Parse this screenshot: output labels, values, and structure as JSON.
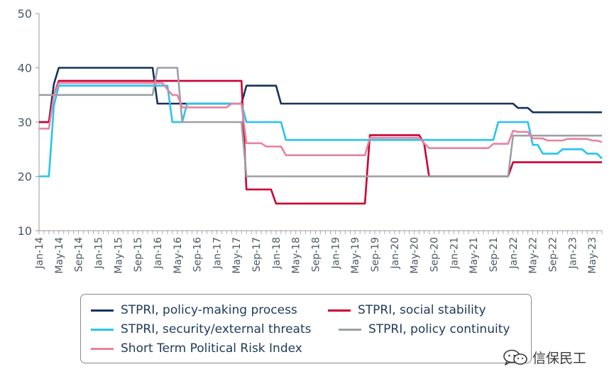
{
  "chart_data": {
    "type": "line",
    "title": "",
    "xlabel": "",
    "ylabel": "",
    "ylim": [
      10,
      50
    ],
    "yticks": [
      10,
      20,
      30,
      40,
      50
    ],
    "x_start": "Jan-14",
    "x_end": "Jul-23",
    "grid": false,
    "legend_position": "bottom",
    "xtick_labels": [
      "Jan-14",
      "May-14",
      "Sep-14",
      "Jan-15",
      "May-15",
      "Sep-15",
      "Jan-16",
      "May-16",
      "Sep-16",
      "Jan-17",
      "May-17",
      "Sep-17",
      "Jan-18",
      "May-18",
      "Sep-18",
      "Jan-19",
      "May-19",
      "Sep-19",
      "Jan-20",
      "May-20",
      "Sep-20",
      "Jan-21",
      "May-21",
      "Sep-21",
      "Jan-22",
      "May-22",
      "Sep-22",
      "Jan-23",
      "May-23"
    ],
    "series": [
      {
        "name": "STPRI, policy-making process",
        "color": "#14335c",
        "points": [
          [
            "Jan-14",
            30
          ],
          [
            "Mar-14",
            30
          ],
          [
            "Apr-14",
            37
          ],
          [
            "May-14",
            40
          ],
          [
            "Dec-15",
            40
          ],
          [
            "Jan-16",
            33.4
          ],
          [
            "Jun-17",
            33.4
          ],
          [
            "Jul-17",
            36.7
          ],
          [
            "Jan-18",
            36.7
          ],
          [
            "Feb-18",
            33.4
          ],
          [
            "Jan-22",
            33.4
          ],
          [
            "Feb-22",
            32.6
          ],
          [
            "Apr-22",
            32.6
          ],
          [
            "May-22",
            31.8
          ],
          [
            "Jul-23",
            31.8
          ]
        ]
      },
      {
        "name": "STPRI, social stability",
        "color": "#cc0033",
        "points": [
          [
            "Jan-14",
            30
          ],
          [
            "Mar-14",
            30
          ],
          [
            "Apr-14",
            35
          ],
          [
            "May-14",
            37.6
          ],
          [
            "Jun-17",
            37.6
          ],
          [
            "Jul-17",
            17.6
          ],
          [
            "Dec-17",
            17.6
          ],
          [
            "Jan-18",
            15
          ],
          [
            "Jul-19",
            15
          ],
          [
            "Aug-19",
            27.6
          ],
          [
            "Jun-20",
            27.6
          ],
          [
            "Jul-20",
            26
          ],
          [
            "Aug-20",
            20
          ],
          [
            "Dec-21",
            20
          ],
          [
            "Jan-22",
            22.6
          ],
          [
            "Jul-23",
            22.6
          ]
        ]
      },
      {
        "name": "STPRI, security/external threats",
        "color": "#26c4ef",
        "points": [
          [
            "Jan-14",
            20
          ],
          [
            "Mar-14",
            20
          ],
          [
            "Apr-14",
            33
          ],
          [
            "May-14",
            36.7
          ],
          [
            "Jan-16",
            36.7
          ],
          [
            "Mar-16",
            36.7
          ],
          [
            "Apr-16",
            30
          ],
          [
            "Jun-16",
            30
          ],
          [
            "Jul-16",
            33.4
          ],
          [
            "May-17",
            33.4
          ],
          [
            "Jun-17",
            33.4
          ],
          [
            "Jul-17",
            30
          ],
          [
            "Feb-18",
            30
          ],
          [
            "Mar-18",
            26.7
          ],
          [
            "Sep-21",
            26.7
          ],
          [
            "Oct-21",
            30
          ],
          [
            "Apr-22",
            30
          ],
          [
            "May-22",
            25.8
          ],
          [
            "Jun-22",
            25.8
          ],
          [
            "Jul-22",
            24.2
          ],
          [
            "Oct-22",
            24.2
          ],
          [
            "Nov-22",
            25
          ],
          [
            "Mar-23",
            25
          ],
          [
            "Apr-23",
            24.2
          ],
          [
            "Jun-23",
            24.2
          ],
          [
            "Jul-23",
            23.3
          ]
        ]
      },
      {
        "name": "STPRI, policy continuity",
        "color": "#9aa0a6",
        "points": [
          [
            "Jan-14",
            35
          ],
          [
            "Dec-15",
            35
          ],
          [
            "Jan-16",
            40
          ],
          [
            "May-16",
            40
          ],
          [
            "Jun-16",
            30
          ],
          [
            "May-17",
            30
          ],
          [
            "Jun-17",
            30
          ],
          [
            "Jul-17",
            20
          ],
          [
            "Dec-21",
            20
          ],
          [
            "Jan-22",
            27.5
          ],
          [
            "Jul-23",
            27.5
          ]
        ]
      },
      {
        "name": "Short Term Political Risk Index",
        "color": "#e8829e",
        "points": [
          [
            "Jan-14",
            28.8
          ],
          [
            "Mar-14",
            28.8
          ],
          [
            "Apr-14",
            35
          ],
          [
            "May-14",
            37.2
          ],
          [
            "Feb-16",
            37.2
          ],
          [
            "Mar-16",
            36
          ],
          [
            "Apr-16",
            35
          ],
          [
            "May-16",
            35
          ],
          [
            "Jun-16",
            32.7
          ],
          [
            "Mar-17",
            32.7
          ],
          [
            "Apr-17",
            33.4
          ],
          [
            "Jun-17",
            33.4
          ],
          [
            "Jul-17",
            26.1
          ],
          [
            "Oct-17",
            26.1
          ],
          [
            "Nov-17",
            25.5
          ],
          [
            "Feb-18",
            25.5
          ],
          [
            "Mar-18",
            23.9
          ],
          [
            "Jul-19",
            23.9
          ],
          [
            "Aug-19",
            27.1
          ],
          [
            "Jun-20",
            27.1
          ],
          [
            "Jul-20",
            26.1
          ],
          [
            "Aug-20",
            25.2
          ],
          [
            "Aug-21",
            25.2
          ],
          [
            "Sep-21",
            26
          ],
          [
            "Dec-21",
            26
          ],
          [
            "Jan-22",
            28.4
          ],
          [
            "Feb-22",
            28.2
          ],
          [
            "Apr-22",
            28.2
          ],
          [
            "May-22",
            27
          ],
          [
            "Jul-22",
            27
          ],
          [
            "Aug-22",
            26.6
          ],
          [
            "Nov-22",
            26.6
          ],
          [
            "Dec-22",
            26.9
          ],
          [
            "Apr-23",
            26.9
          ],
          [
            "May-23",
            26.6
          ],
          [
            "Jun-23",
            26.6
          ],
          [
            "Jul-23",
            26.3
          ]
        ]
      }
    ]
  },
  "legend": [
    {
      "label": "STPRI, policy-making process",
      "color": "#14335c"
    },
    {
      "label": "STPRI, social stability",
      "color": "#cc0033"
    },
    {
      "label": "STPRI, security/external threats",
      "color": "#26c4ef"
    },
    {
      "label": "STPRI, policy continuity",
      "color": "#9aa0a6"
    },
    {
      "label": "Short Term Political Risk Index",
      "color": "#e8829e"
    }
  ],
  "watermark": {
    "text": "信保民工",
    "icon": "wechat-icon"
  }
}
